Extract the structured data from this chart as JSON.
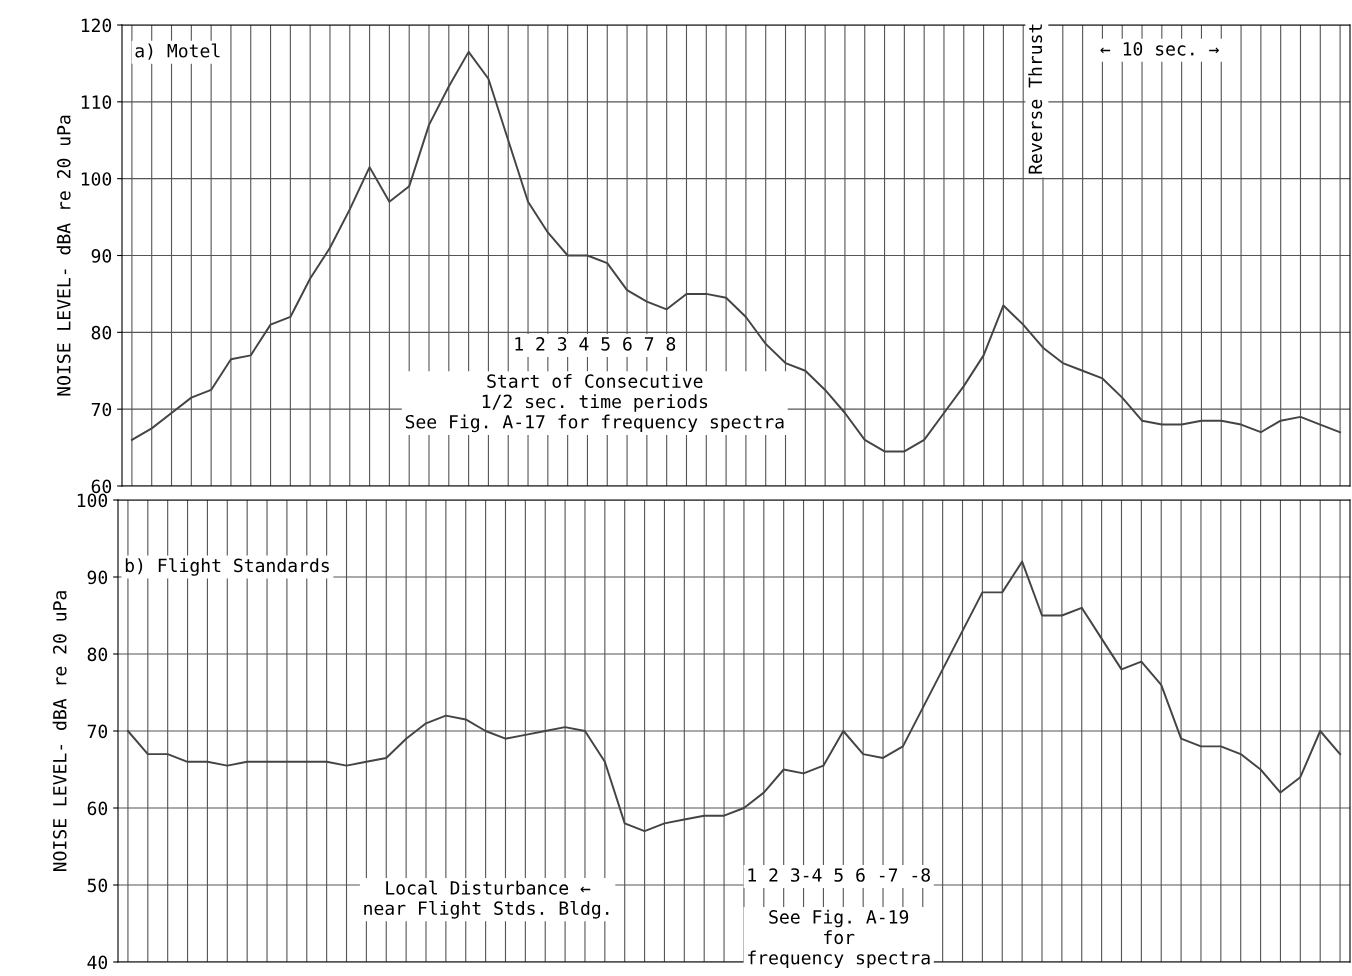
{
  "chart_data": [
    {
      "type": "line",
      "title": null,
      "ylabel": "NOISE LEVEL- dBA re 20 uPa",
      "categories": [
        null,
        null,
        null,
        null,
        null,
        null,
        null,
        null,
        null,
        null,
        null,
        null,
        null,
        null,
        null,
        null,
        null,
        null,
        null,
        null,
        null,
        null,
        null,
        null,
        null,
        null,
        null,
        null,
        null,
        null,
        null,
        null,
        null,
        null,
        null,
        null,
        null,
        null,
        null,
        null,
        null,
        null,
        null,
        null,
        null,
        null,
        null,
        null,
        null,
        null,
        null,
        null,
        null,
        null,
        null,
        null,
        null,
        null,
        null,
        null,
        null,
        null
      ],
      "series": [
        {
          "color": "#444444",
          "values": [
            66,
            67.5,
            69.5,
            71.5,
            72.5,
            76.5,
            77,
            81,
            82,
            87,
            91,
            96,
            101.5,
            97,
            99,
            107,
            112,
            116.5,
            113,
            105,
            97,
            93,
            90,
            90,
            89,
            85.5,
            84,
            83,
            85,
            85,
            84.5,
            82,
            78.5,
            76,
            75,
            72.5,
            69.5,
            66,
            64.5,
            64.5,
            66,
            69.5,
            73,
            77,
            83.5,
            81,
            78,
            76,
            75,
            74,
            71.5,
            68.5,
            68,
            68,
            68.5,
            68.5,
            68,
            67,
            68.5,
            69,
            68,
            67
          ]
        }
      ],
      "ylim": [
        60,
        120
      ],
      "yticks": [
        60,
        70,
        80,
        90,
        100,
        110,
        120
      ],
      "grid": true,
      "tick_labels": "y",
      "legend": false,
      "marker": "none",
      "line_style": "solid",
      "annotations": [
        "a) Motel",
        "1 2 3 4 5 6 7 8",
        "Start of Consecutive\n1/2 sec. time periods\nSee Fig. A-17 for frequency spectra",
        "Reverse Thrust",
        "← 10 sec. →"
      ]
    },
    {
      "type": "line",
      "title": null,
      "ylabel": "NOISE LEVEL- dBA re 20 uPa",
      "categories": [
        null,
        null,
        null,
        null,
        null,
        null,
        null,
        null,
        null,
        null,
        null,
        null,
        null,
        null,
        null,
        null,
        null,
        null,
        null,
        null,
        null,
        null,
        null,
        null,
        null,
        null,
        null,
        null,
        null,
        null,
        null,
        null,
        null,
        null,
        null,
        null,
        null,
        null,
        null,
        null,
        null,
        null,
        null,
        null,
        null,
        null,
        null,
        null,
        null,
        null,
        null,
        null,
        null,
        null,
        null,
        null,
        null,
        null,
        null,
        null,
        null,
        null
      ],
      "series": [
        {
          "color": "#444444",
          "values": [
            70,
            67,
            67,
            66,
            66,
            65.5,
            66,
            66,
            66,
            66,
            66,
            65.5,
            66,
            66.5,
            69,
            71,
            72,
            71.5,
            70,
            69,
            69.5,
            70,
            70.5,
            70,
            66,
            58,
            57,
            58,
            58.5,
            59,
            59,
            60,
            62,
            65,
            64.5,
            65.5,
            70,
            67,
            66.5,
            68,
            73,
            78,
            83,
            88,
            88,
            92,
            85,
            85,
            86,
            82,
            78,
            79,
            76,
            69,
            68,
            68,
            67,
            65,
            62,
            64,
            70,
            67
          ]
        }
      ],
      "ylim": [
        40,
        100
      ],
      "yticks": [
        40,
        50,
        60,
        70,
        80,
        90,
        100
      ],
      "grid": true,
      "tick_labels": "y",
      "legend": false,
      "marker": "none",
      "line_style": "solid",
      "annotations": [
        "b) Flight Standards",
        "Local Disturbance ←\nnear Flight Stds. Bldg.",
        "1 2 3-4 5 6 -7 -8",
        "See Fig. A-19\nfor\nfrequency spectra"
      ]
    }
  ]
}
